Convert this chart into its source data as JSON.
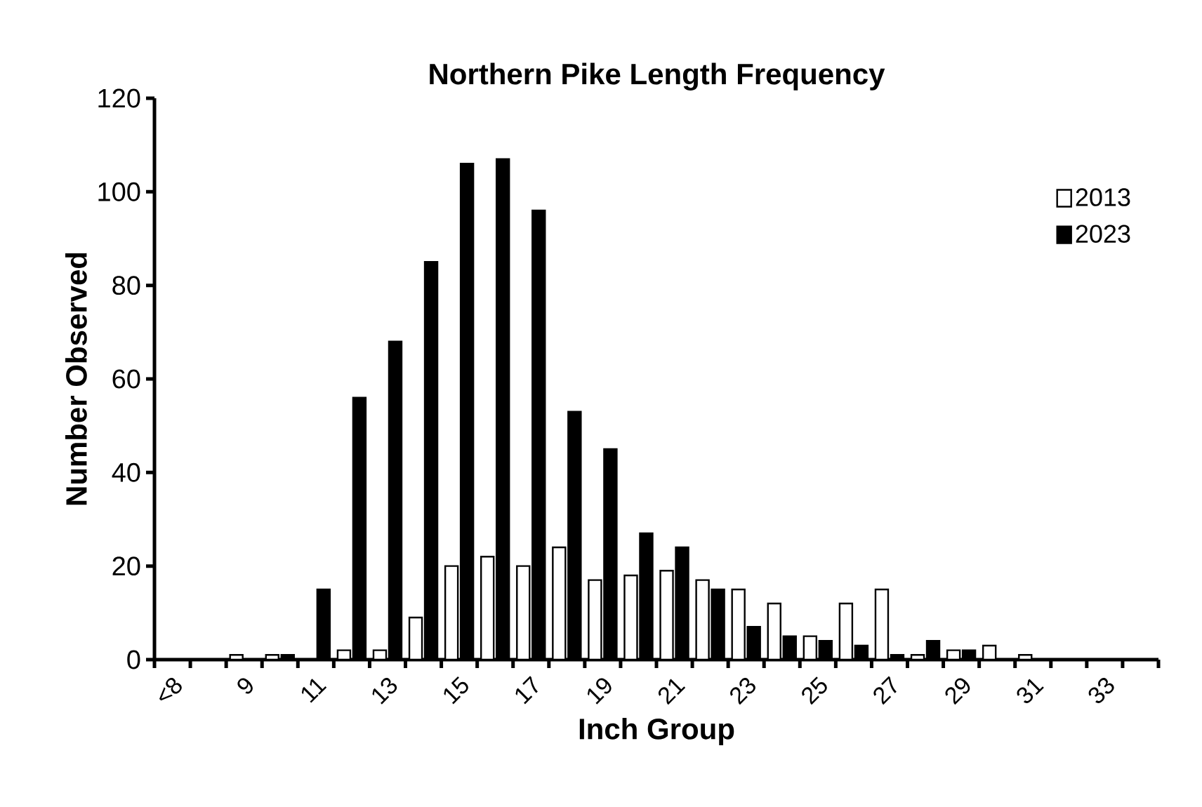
{
  "chart_data": {
    "type": "bar",
    "title": "Northern Pike Length Frequency",
    "xlabel": "Inch Group",
    "ylabel": "Number Observed",
    "categories": [
      "<8",
      null,
      "9",
      null,
      "11",
      null,
      "13",
      null,
      "15",
      null,
      "17",
      null,
      "19",
      null,
      "21",
      null,
      "23",
      null,
      "25",
      null,
      "27",
      null,
      "29",
      null,
      "31",
      null,
      "33",
      null
    ],
    "series": [
      {
        "name": "2013",
        "color": "#ffffff",
        "values": [
          0,
          0,
          1,
          1,
          0,
          2,
          2,
          9,
          20,
          22,
          20,
          24,
          17,
          18,
          19,
          17,
          15,
          12,
          5,
          12,
          15,
          1,
          2,
          3,
          1,
          0,
          0,
          0
        ]
      },
      {
        "name": "2023",
        "color": "#000000",
        "values": [
          0,
          0,
          0,
          1,
          15,
          56,
          68,
          85,
          106,
          107,
          96,
          53,
          45,
          27,
          24,
          15,
          7,
          5,
          4,
          3,
          1,
          4,
          2,
          0,
          0,
          0,
          0,
          0
        ]
      }
    ],
    "ylim": [
      0,
      120
    ],
    "yticks": [
      0,
      20,
      40,
      60,
      80,
      100,
      120
    ],
    "legend": "top right"
  }
}
